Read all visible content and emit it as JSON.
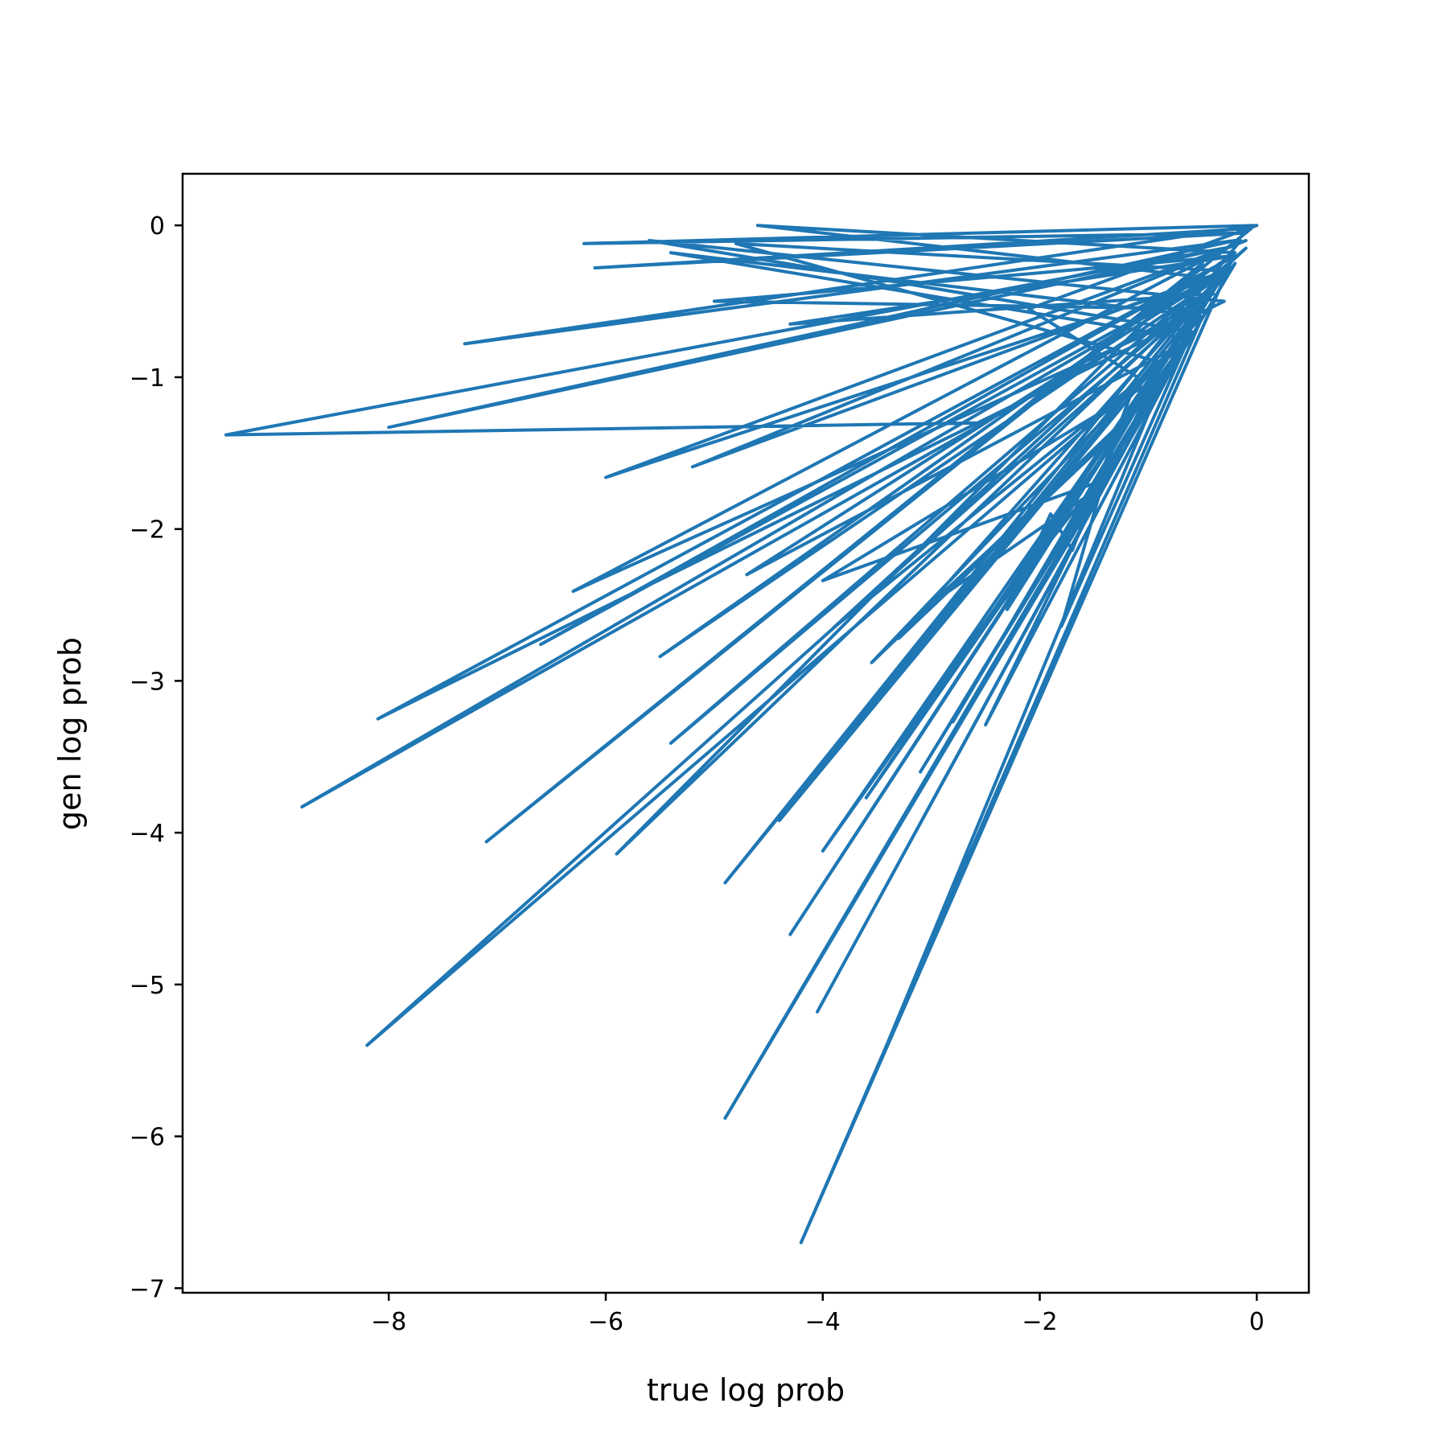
{
  "chart_data": {
    "type": "line",
    "title": "",
    "xlabel": "true log prob",
    "ylabel": "gen log prob",
    "xlim": [
      -9.9,
      0.48
    ],
    "ylim": [
      -7.03,
      0.34
    ],
    "xticks": [
      -8,
      -6,
      -4,
      -2,
      0
    ],
    "xtick_labels": [
      "−8",
      "−6",
      "−4",
      "−2",
      "0"
    ],
    "yticks": [
      0,
      -1,
      -2,
      -3,
      -4,
      -5,
      -6,
      -7
    ],
    "ytick_labels": [
      "0",
      "−1",
      "−2",
      "−3",
      "−4",
      "−5",
      "−6",
      "−7"
    ],
    "grid": false,
    "legend": "none",
    "series": [
      {
        "color": "#1f77b4",
        "x": [
          -2.5,
          -9.5,
          -0.3,
          -8.0,
          -0.2,
          -7.3,
          0.0,
          -6.2,
          -0.1,
          -6.1,
          -0.05,
          -7.1,
          -0.5,
          -5.9,
          -0.3,
          -5.5,
          -0.2,
          -4.6,
          -0.4,
          -6.0,
          -0.1,
          -5.2,
          -0.3,
          -8.8,
          -0.4,
          -4.3,
          -0.2,
          -8.1,
          -0.3,
          -5.6,
          -0.6,
          -3.1,
          -0.2,
          -5.0,
          -0.5,
          -6.3,
          -0.15,
          -4.9,
          -0.3,
          -6.6,
          -0.2,
          -4.3,
          -0.4,
          -5.4,
          -0.1,
          -3.9,
          -0.7,
          -8.2,
          -0.3,
          -4.2,
          -0.5,
          -5.4,
          -0.6,
          -4.7,
          -0.3,
          -4.8,
          -0.9,
          -4.4,
          -0.2,
          -4.9,
          -0.7,
          -4.05,
          -0.4,
          -4.0,
          -0.8,
          -3.4,
          -0.5,
          -3.55,
          -1.1,
          -2.8,
          -1.5,
          -4.0,
          -0.9,
          -3.6,
          -0.3,
          -3.3,
          -1.2,
          -3.0,
          -1.6,
          -2.7,
          -1.0,
          -2.5,
          -0.6,
          -1.8,
          -1.3,
          -2.3,
          -1.9,
          -1.7,
          -1.1,
          -2.1,
          0.0
        ],
        "y": [
          -1.3,
          -1.38,
          -0.15,
          -1.33,
          -0.1,
          -0.78,
          0.0,
          -0.12,
          -0.05,
          -0.28,
          -0.02,
          -4.06,
          -0.25,
          -4.14,
          -0.32,
          -2.84,
          -0.18,
          -0.0,
          -0.35,
          -1.66,
          -0.1,
          -1.59,
          -0.3,
          -3.83,
          -0.45,
          -0.65,
          -0.2,
          -3.25,
          -0.5,
          -0.1,
          -0.7,
          -3.6,
          -0.2,
          -0.5,
          -0.55,
          -2.41,
          -0.1,
          -4.33,
          -0.3,
          -2.76,
          -0.2,
          -4.67,
          -0.4,
          -3.41,
          -0.15,
          -2.65,
          -0.8,
          -5.4,
          -0.35,
          -6.7,
          -0.6,
          -0.18,
          -0.75,
          -2.3,
          -0.3,
          -0.12,
          -0.9,
          -3.92,
          -0.25,
          -5.88,
          -0.8,
          -5.18,
          -0.4,
          -4.12,
          -0.9,
          -5.38,
          -0.6,
          -2.88,
          -1.2,
          -3.27,
          -1.7,
          -2.34,
          -1.0,
          -3.77,
          -0.3,
          -2.72,
          -1.3,
          -2.49,
          -1.8,
          -2.81,
          -1.1,
          -3.29,
          -0.7,
          -2.64,
          -1.4,
          -2.53,
          -1.9,
          -2.14,
          -1.0,
          -0.55,
          0.0
        ]
      }
    ]
  }
}
